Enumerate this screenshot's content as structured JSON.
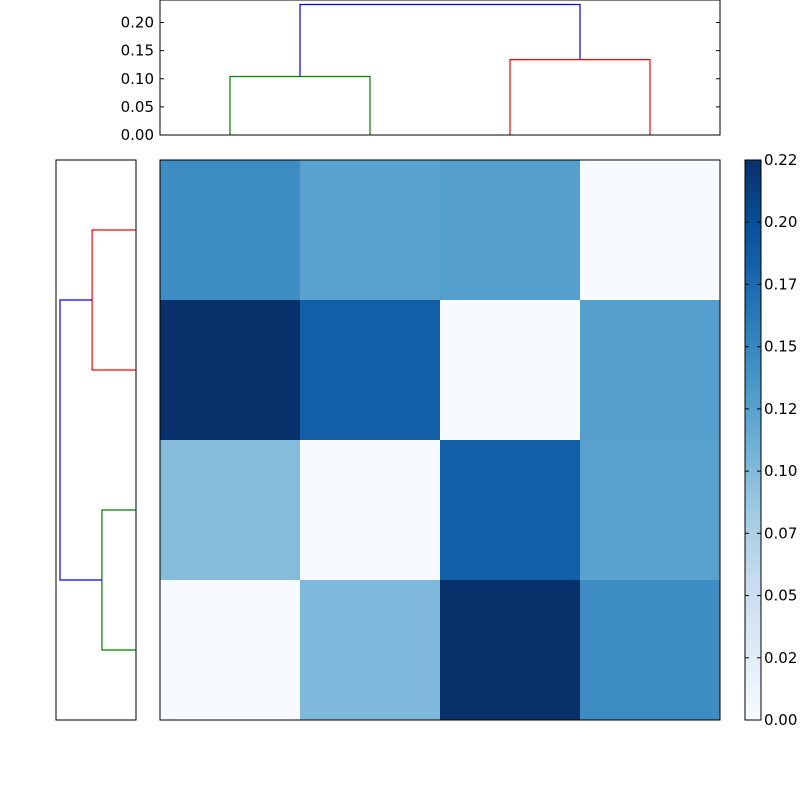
{
  "chart_data": [
    {
      "type": "dendrogram",
      "orientation": "top",
      "ylim": [
        0,
        0.24
      ],
      "yticks": [
        "0.00",
        "0.05",
        "0.10",
        "0.15",
        "0.20"
      ],
      "leaf_count": 4,
      "links": [
        {
          "left_leaf_pos": 0.5,
          "right_leaf_pos": 1.5,
          "left_height": 0,
          "right_height": 0,
          "height": 0.104,
          "color": "#008000"
        },
        {
          "left_leaf_pos": 2.5,
          "right_leaf_pos": 3.5,
          "left_height": 0,
          "right_height": 0,
          "height": 0.134,
          "color": "#ff0000"
        },
        {
          "left_leaf_pos": 1.0,
          "right_leaf_pos": 3.0,
          "left_height": 0.104,
          "right_height": 0.134,
          "height": 0.232,
          "color": "#0000ff"
        }
      ]
    },
    {
      "type": "dendrogram",
      "orientation": "left",
      "leaf_count": 4,
      "max_height": 0.232,
      "links": [
        {
          "left_leaf_pos": 0.5,
          "right_leaf_pos": 1.5,
          "left_height": 0,
          "right_height": 0,
          "height": 0.134,
          "color": "#ff0000"
        },
        {
          "left_leaf_pos": 2.5,
          "right_leaf_pos": 3.5,
          "left_height": 0,
          "right_height": 0,
          "height": 0.104,
          "color": "#008000"
        },
        {
          "left_leaf_pos": 1.0,
          "right_leaf_pos": 3.0,
          "left_height": 0.134,
          "right_height": 0.104,
          "height": 0.232,
          "color": "#0000ff"
        }
      ]
    },
    {
      "type": "heatmap",
      "rows": 4,
      "cols": 4,
      "values": [
        [
          0.145,
          0.125,
          0.128,
          0.0
        ],
        [
          0.225,
          0.185,
          0.0,
          0.128
        ],
        [
          0.098,
          0.0,
          0.185,
          0.125
        ],
        [
          0.0,
          0.102,
          0.225,
          0.145
        ]
      ],
      "vmin": 0.0,
      "vmax": 0.225,
      "colormap": "Blues",
      "colorbar_ticks": [
        "0.00",
        "0.02",
        "0.05",
        "0.07",
        "0.10",
        "0.12",
        "0.15",
        "0.17",
        "0.20",
        "0.22"
      ]
    }
  ]
}
